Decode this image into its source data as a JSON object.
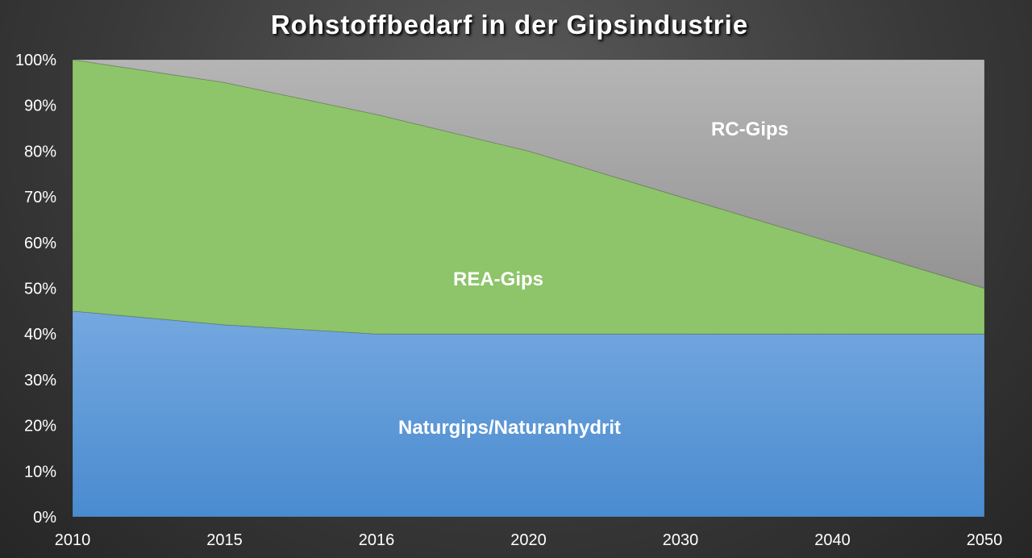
{
  "chart_data": {
    "type": "area",
    "stacked": "percent",
    "title": "Rohstoffbedarf in der Gipsindustrie",
    "categories": [
      "2010",
      "2015",
      "2016",
      "2020",
      "2030",
      "2040",
      "2050"
    ],
    "series": [
      {
        "name": "Naturgips/Naturanhydrit",
        "values": [
          45,
          42,
          40,
          40,
          40,
          40,
          40
        ],
        "color": "#5b9bd5"
      },
      {
        "name": "REA-Gips",
        "values": [
          55,
          53,
          48,
          40,
          30,
          20,
          10
        ],
        "color": "#8dc36a"
      },
      {
        "name": "RC-Gips",
        "values": [
          0,
          5,
          12,
          20,
          30,
          40,
          50
        ],
        "color": "#a8a8a8"
      }
    ],
    "yticks": [
      "0%",
      "10%",
      "20%",
      "30%",
      "40%",
      "50%",
      "60%",
      "70%",
      "80%",
      "90%",
      "100%"
    ],
    "ylim": [
      0,
      100
    ],
    "grid": false,
    "legend": "none (labels inside areas)"
  }
}
